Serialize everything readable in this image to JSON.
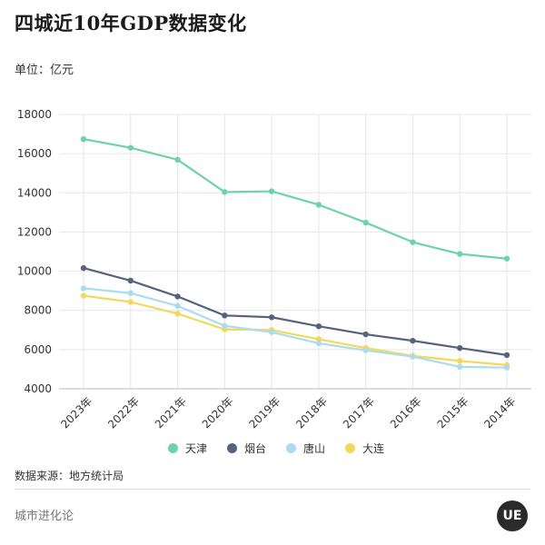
{
  "header": {
    "title": "四城近10年GDP数据变化",
    "unit": "单位：亿元"
  },
  "footer": {
    "source": "数据来源：地方统计局",
    "brand": "城市进化论",
    "logo_text": "UE"
  },
  "colors": {
    "天津": "#6fd3a8",
    "烟台": "#56637f",
    "唐山": "#a9dcf1",
    "大连": "#f4d85b",
    "grid": "#e6e6e6",
    "axis": "#999999"
  },
  "chart_data": {
    "type": "line",
    "title": "四城近10年GDP数据变化",
    "ylabel": "单位：亿元",
    "xlabel": "",
    "ylim": [
      4000,
      18000
    ],
    "yticks": [
      4000,
      6000,
      8000,
      10000,
      12000,
      14000,
      16000,
      18000
    ],
    "categories": [
      "2023年",
      "2022年",
      "2021年",
      "2020年",
      "2019年",
      "2018年",
      "2017年",
      "2016年",
      "2015年",
      "2014年"
    ],
    "grid": true,
    "legend_position": "bottom",
    "series": [
      {
        "name": "天津",
        "values": [
          16740,
          16300,
          15690,
          14040,
          14080,
          13390,
          12480,
          11480,
          10880,
          10640
        ]
      },
      {
        "name": "烟台",
        "values": [
          10160,
          9520,
          8710,
          7740,
          7650,
          7190,
          6780,
          6450,
          6080,
          5720
        ]
      },
      {
        "name": "唐山",
        "values": [
          9130,
          8880,
          8230,
          7210,
          6890,
          6320,
          5960,
          5640,
          5120,
          5080
        ]
      },
      {
        "name": "大连",
        "values": [
          8750,
          8430,
          7830,
          7030,
          7000,
          6530,
          6080,
          5680,
          5420,
          5210
        ]
      }
    ]
  }
}
